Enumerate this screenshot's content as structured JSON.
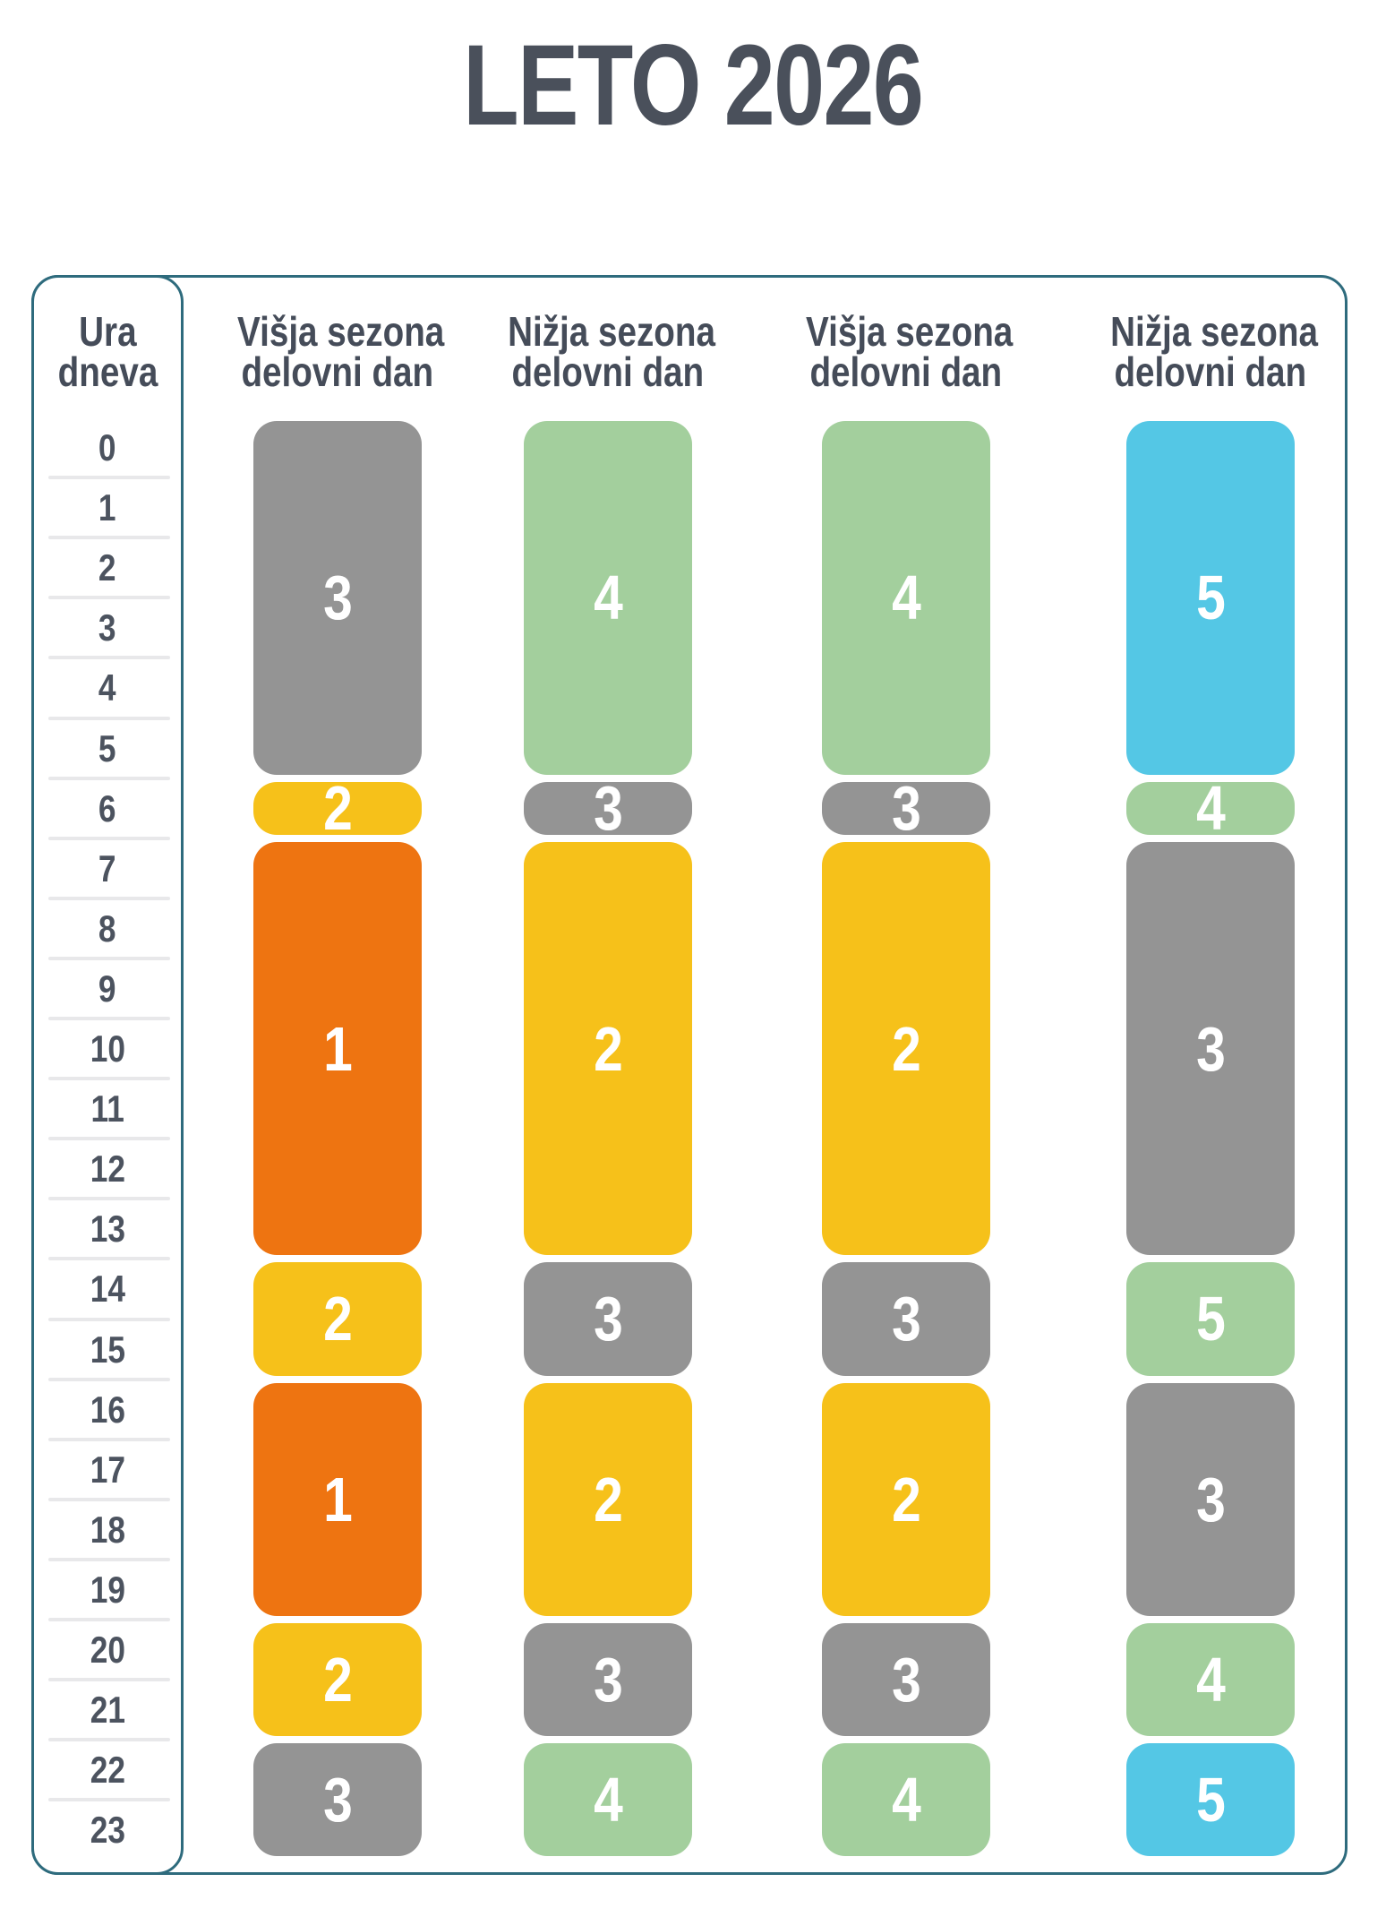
{
  "title": "LETO 2026",
  "colors": {
    "gray": "#949494",
    "yellow": "#f6c11a",
    "orange": "#ee7411",
    "green": "#a3cf9d",
    "blue": "#54c7e5",
    "border_teal": "#2e6b7d",
    "heading_text": "#454c59",
    "hour_text": "#4c535f",
    "separator": "#e8e8ea",
    "block_number_text": "#ffffff"
  },
  "table": {
    "hour_header": {
      "line1": "Ura",
      "line2": "dneva"
    },
    "hours": [
      "0",
      "1",
      "2",
      "3",
      "4",
      "5",
      "6",
      "7",
      "8",
      "9",
      "10",
      "11",
      "12",
      "13",
      "14",
      "15",
      "16",
      "17",
      "18",
      "19",
      "20",
      "21",
      "22",
      "23"
    ],
    "columns": [
      {
        "header_line1": "Višja sezona",
        "header_line2": "delovni dan",
        "blocks": [
          {
            "start": 0,
            "end": 5,
            "value": "3",
            "color": "gray"
          },
          {
            "start": 6,
            "end": 6,
            "value": "2",
            "color": "yellow"
          },
          {
            "start": 7,
            "end": 13,
            "value": "1",
            "color": "orange"
          },
          {
            "start": 14,
            "end": 15,
            "value": "2",
            "color": "yellow"
          },
          {
            "start": 16,
            "end": 19,
            "value": "1",
            "color": "orange"
          },
          {
            "start": 20,
            "end": 21,
            "value": "2",
            "color": "yellow"
          },
          {
            "start": 22,
            "end": 23,
            "value": "3",
            "color": "gray"
          }
        ]
      },
      {
        "header_line1": "Nižja sezona",
        "header_line2": "delovni dan",
        "blocks": [
          {
            "start": 0,
            "end": 5,
            "value": "4",
            "color": "green"
          },
          {
            "start": 6,
            "end": 6,
            "value": "3",
            "color": "gray"
          },
          {
            "start": 7,
            "end": 13,
            "value": "2",
            "color": "yellow"
          },
          {
            "start": 14,
            "end": 15,
            "value": "3",
            "color": "gray"
          },
          {
            "start": 16,
            "end": 19,
            "value": "2",
            "color": "yellow"
          },
          {
            "start": 20,
            "end": 21,
            "value": "3",
            "color": "gray"
          },
          {
            "start": 22,
            "end": 23,
            "value": "4",
            "color": "green"
          }
        ]
      },
      {
        "header_line1": "Višja sezona",
        "header_line2": "delovni dan",
        "blocks": [
          {
            "start": 0,
            "end": 5,
            "value": "4",
            "color": "green"
          },
          {
            "start": 6,
            "end": 6,
            "value": "3",
            "color": "gray"
          },
          {
            "start": 7,
            "end": 13,
            "value": "2",
            "color": "yellow"
          },
          {
            "start": 14,
            "end": 15,
            "value": "3",
            "color": "gray"
          },
          {
            "start": 16,
            "end": 19,
            "value": "2",
            "color": "yellow"
          },
          {
            "start": 20,
            "end": 21,
            "value": "3",
            "color": "gray"
          },
          {
            "start": 22,
            "end": 23,
            "value": "4",
            "color": "green"
          }
        ]
      },
      {
        "header_line1": "Nižja sezona",
        "header_line2": "delovni dan",
        "blocks": [
          {
            "start": 0,
            "end": 5,
            "value": "5",
            "color": "blue"
          },
          {
            "start": 6,
            "end": 6,
            "value": "4",
            "color": "green"
          },
          {
            "start": 7,
            "end": 13,
            "value": "3",
            "color": "gray"
          },
          {
            "start": 14,
            "end": 15,
            "value": "5",
            "color": "green"
          },
          {
            "start": 16,
            "end": 19,
            "value": "3",
            "color": "gray"
          },
          {
            "start": 20,
            "end": 21,
            "value": "4",
            "color": "green"
          },
          {
            "start": 22,
            "end": 23,
            "value": "5",
            "color": "blue"
          }
        ]
      }
    ]
  },
  "chart_data": {
    "type": "heatmap",
    "title": "LETO 2026",
    "x": [
      "Višja sezona delovni dan",
      "Nižja sezona delovni dan",
      "Višja sezona delovni dan",
      "Nižja sezona delovni dan"
    ],
    "y_label": "Ura dneva",
    "y": [
      0,
      1,
      2,
      3,
      4,
      5,
      6,
      7,
      8,
      9,
      10,
      11,
      12,
      13,
      14,
      15,
      16,
      17,
      18,
      19,
      20,
      21,
      22,
      23
    ],
    "series": [
      {
        "name": "Višja sezona delovni dan",
        "values": [
          3,
          3,
          3,
          3,
          3,
          3,
          2,
          1,
          1,
          1,
          1,
          1,
          1,
          1,
          2,
          2,
          1,
          1,
          1,
          1,
          2,
          2,
          3,
          3
        ]
      },
      {
        "name": "Nižja sezona delovni dan",
        "values": [
          4,
          4,
          4,
          4,
          4,
          4,
          3,
          2,
          2,
          2,
          2,
          2,
          2,
          2,
          3,
          3,
          2,
          2,
          2,
          2,
          3,
          3,
          4,
          4
        ]
      },
      {
        "name": "Višja sezona delovni dan",
        "values": [
          4,
          4,
          4,
          4,
          4,
          4,
          3,
          2,
          2,
          2,
          2,
          2,
          2,
          2,
          3,
          3,
          2,
          2,
          2,
          2,
          3,
          3,
          4,
          4
        ]
      },
      {
        "name": "Nižja sezona delovni dan",
        "values": [
          5,
          5,
          5,
          5,
          5,
          5,
          4,
          3,
          3,
          3,
          3,
          3,
          3,
          3,
          5,
          5,
          3,
          3,
          3,
          3,
          4,
          4,
          5,
          5
        ]
      }
    ],
    "legend": "block numbers 1-5 drawn inside colored time segments",
    "value_colors": {
      "1": "#ee7411",
      "2": "#f6c11a",
      "3_gray": "#949494",
      "4": "#a3cf9d",
      "5_blue": "#54c7e5"
    }
  }
}
